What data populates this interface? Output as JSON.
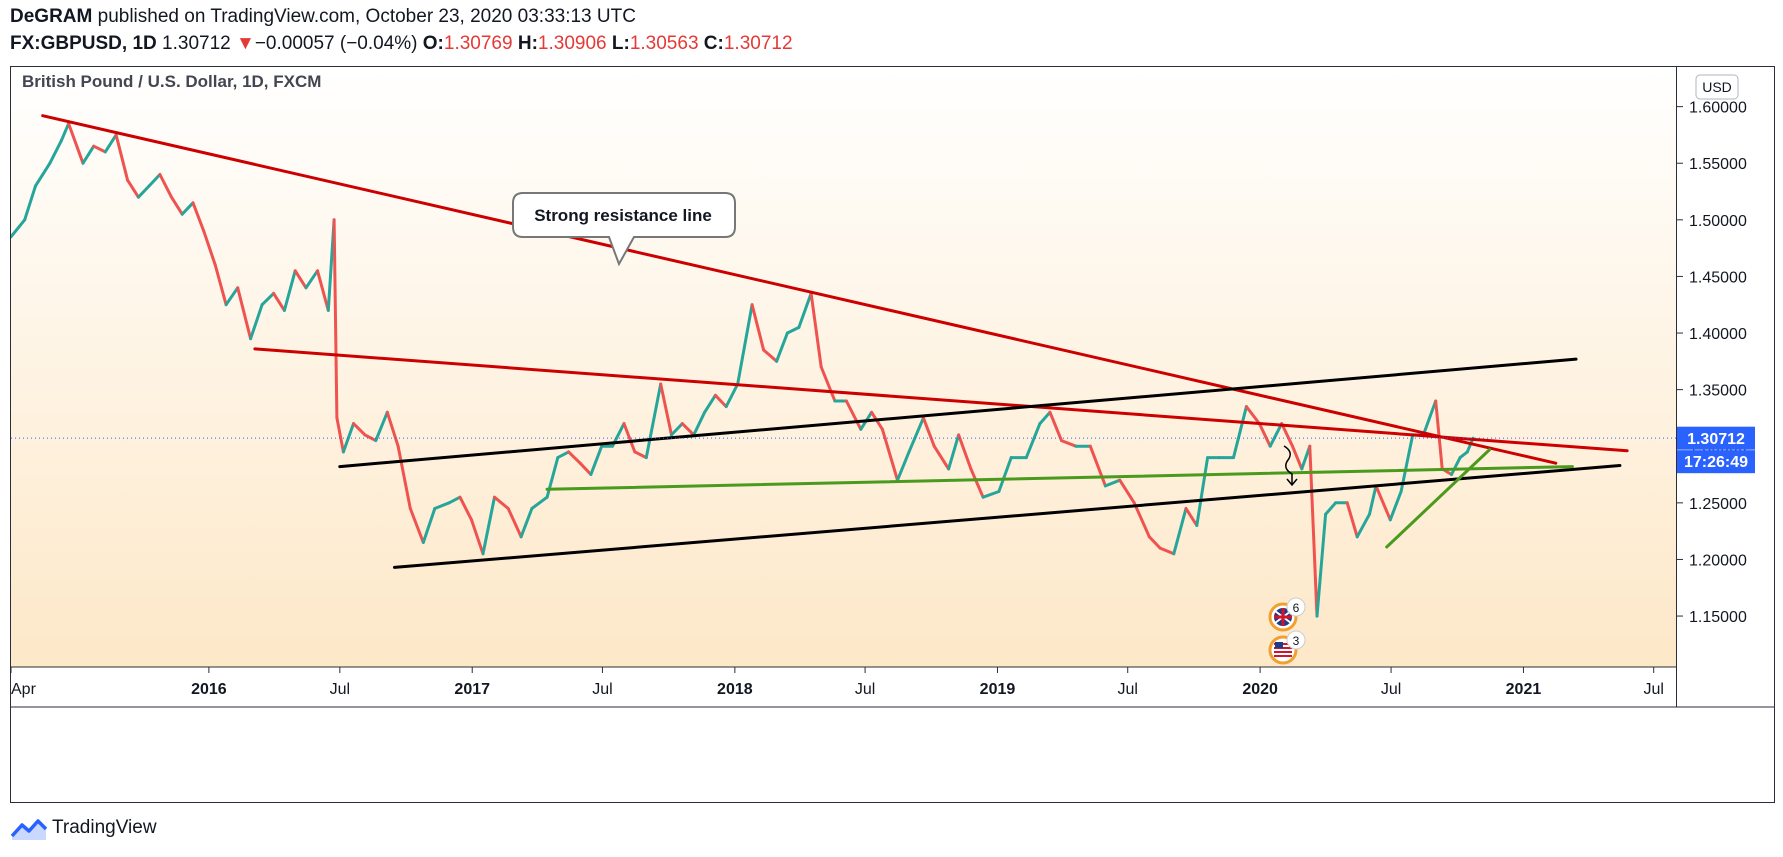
{
  "header": {
    "author": "DeGRAM",
    "published": "published on TradingView.com, October 23, 2020 03:33:13 UTC",
    "symbol": "FX:GBPUSD, 1D",
    "last": "1.30712",
    "change_arrow": "▼",
    "change": "−0.00057 (−0.04%)",
    "o_label": "O:",
    "o_value": "1.30769",
    "h_label": "H:",
    "h_value": "1.30906",
    "l_label": "L:",
    "l_value": "1.30563",
    "c_label": "C:",
    "c_value": "1.30712"
  },
  "chart_title": "British Pound / U.S. Dollar, 1D, FXCM",
  "currency_badge": "USD",
  "price_badge": "1.30712",
  "countdown_badge": "17:26:49",
  "annotation": "Strong resistance line",
  "event_icons": [
    {
      "flag": "uk-flag-icon",
      "count": "6"
    },
    {
      "flag": "us-flag-icon",
      "count": "3"
    }
  ],
  "footer_brand": "TradingView",
  "colors": {
    "resistance": "#cc0000",
    "channel": "#000000",
    "support_green": "#4a9a1e",
    "candle_up": "#26a69a",
    "candle_down": "#ef5350",
    "badge_blue": "#2962ff",
    "bg_top": "#ffffff",
    "bg_bottom": "#fde8c8"
  },
  "chart_data": {
    "type": "line",
    "title": "British Pound / U.S. Dollar, 1D, FXCM",
    "ylabel": "USD",
    "ylim": [
      1.105,
      1.635
    ],
    "xlim": [
      "2015-04-01",
      "2021-08-01"
    ],
    "y_ticks": [
      "1.15000",
      "1.20000",
      "1.25000",
      "1.30000",
      "1.35000",
      "1.40000",
      "1.45000",
      "1.50000",
      "1.55000",
      "1.60000"
    ],
    "x_ticks": [
      {
        "label": "Apr",
        "date": "2015-04-01",
        "bold": false
      },
      {
        "label": "2016",
        "date": "2016-01-01",
        "bold": true
      },
      {
        "label": "Jul",
        "date": "2016-07-01",
        "bold": false
      },
      {
        "label": "2017",
        "date": "2017-01-01",
        "bold": true
      },
      {
        "label": "Jul",
        "date": "2017-07-01",
        "bold": false
      },
      {
        "label": "2018",
        "date": "2018-01-01",
        "bold": true
      },
      {
        "label": "Jul",
        "date": "2018-07-01",
        "bold": false
      },
      {
        "label": "2019",
        "date": "2019-01-01",
        "bold": true
      },
      {
        "label": "Jul",
        "date": "2019-07-01",
        "bold": false
      },
      {
        "label": "2020",
        "date": "2020-01-01",
        "bold": true
      },
      {
        "label": "Jul",
        "date": "2020-07-01",
        "bold": false
      },
      {
        "label": "2021",
        "date": "2021-01-01",
        "bold": true
      },
      {
        "label": "Jul",
        "date": "2021-07-01",
        "bold": false
      }
    ],
    "series": [
      {
        "values": [
          [
            "2015-04-01",
            1.485
          ],
          [
            "2015-04-20",
            1.5
          ],
          [
            "2015-05-05",
            1.53
          ],
          [
            "2015-05-25",
            1.55
          ],
          [
            "2015-06-10",
            1.57
          ],
          [
            "2015-06-20",
            1.585
          ],
          [
            "2015-07-10",
            1.55
          ],
          [
            "2015-07-25",
            1.565
          ],
          [
            "2015-08-10",
            1.56
          ],
          [
            "2015-08-25",
            1.575
          ],
          [
            "2015-09-10",
            1.535
          ],
          [
            "2015-09-25",
            1.52
          ],
          [
            "2015-10-10",
            1.53
          ],
          [
            "2015-10-25",
            1.54
          ],
          [
            "2015-11-10",
            1.52
          ],
          [
            "2015-11-25",
            1.505
          ],
          [
            "2015-12-10",
            1.515
          ],
          [
            "2015-12-25",
            1.49
          ],
          [
            "2016-01-10",
            1.46
          ],
          [
            "2016-01-25",
            1.425
          ],
          [
            "2016-02-10",
            1.44
          ],
          [
            "2016-02-28",
            1.395
          ],
          [
            "2016-03-15",
            1.425
          ],
          [
            "2016-03-31",
            1.435
          ],
          [
            "2016-04-15",
            1.42
          ],
          [
            "2016-04-30",
            1.455
          ],
          [
            "2016-05-15",
            1.44
          ],
          [
            "2016-05-31",
            1.455
          ],
          [
            "2016-06-15",
            1.42
          ],
          [
            "2016-06-23",
            1.5
          ],
          [
            "2016-06-27",
            1.325
          ],
          [
            "2016-07-06",
            1.295
          ],
          [
            "2016-07-20",
            1.32
          ],
          [
            "2016-08-05",
            1.31
          ],
          [
            "2016-08-20",
            1.305
          ],
          [
            "2016-09-05",
            1.33
          ],
          [
            "2016-09-20",
            1.3
          ],
          [
            "2016-10-07",
            1.245
          ],
          [
            "2016-10-25",
            1.215
          ],
          [
            "2016-11-10",
            1.245
          ],
          [
            "2016-11-30",
            1.25
          ],
          [
            "2016-12-15",
            1.255
          ],
          [
            "2016-12-31",
            1.235
          ],
          [
            "2017-01-16",
            1.205
          ],
          [
            "2017-02-01",
            1.255
          ],
          [
            "2017-02-20",
            1.245
          ],
          [
            "2017-03-10",
            1.22
          ],
          [
            "2017-03-25",
            1.245
          ],
          [
            "2017-04-15",
            1.255
          ],
          [
            "2017-04-30",
            1.29
          ],
          [
            "2017-05-15",
            1.295
          ],
          [
            "2017-05-31",
            1.285
          ],
          [
            "2017-06-15",
            1.275
          ],
          [
            "2017-06-30",
            1.3
          ],
          [
            "2017-07-15",
            1.3
          ],
          [
            "2017-07-31",
            1.32
          ],
          [
            "2017-08-15",
            1.295
          ],
          [
            "2017-08-31",
            1.29
          ],
          [
            "2017-09-20",
            1.355
          ],
          [
            "2017-10-05",
            1.31
          ],
          [
            "2017-10-20",
            1.32
          ],
          [
            "2017-11-05",
            1.31
          ],
          [
            "2017-11-20",
            1.33
          ],
          [
            "2017-12-05",
            1.345
          ],
          [
            "2017-12-20",
            1.335
          ],
          [
            "2018-01-05",
            1.355
          ],
          [
            "2018-01-25",
            1.425
          ],
          [
            "2018-02-10",
            1.385
          ],
          [
            "2018-02-28",
            1.375
          ],
          [
            "2018-03-15",
            1.4
          ],
          [
            "2018-03-31",
            1.405
          ],
          [
            "2018-04-17",
            1.435
          ],
          [
            "2018-05-01",
            1.37
          ],
          [
            "2018-05-20",
            1.34
          ],
          [
            "2018-06-05",
            1.34
          ],
          [
            "2018-06-25",
            1.315
          ],
          [
            "2018-07-10",
            1.33
          ],
          [
            "2018-07-25",
            1.315
          ],
          [
            "2018-08-15",
            1.27
          ],
          [
            "2018-08-31",
            1.295
          ],
          [
            "2018-09-20",
            1.325
          ],
          [
            "2018-10-05",
            1.3
          ],
          [
            "2018-10-25",
            1.28
          ],
          [
            "2018-11-08",
            1.31
          ],
          [
            "2018-11-25",
            1.28
          ],
          [
            "2018-12-12",
            1.255
          ],
          [
            "2019-01-03",
            1.26
          ],
          [
            "2019-01-20",
            1.29
          ],
          [
            "2019-02-10",
            1.29
          ],
          [
            "2019-03-01",
            1.32
          ],
          [
            "2019-03-15",
            1.33
          ],
          [
            "2019-03-31",
            1.305
          ],
          [
            "2019-04-20",
            1.3
          ],
          [
            "2019-05-10",
            1.3
          ],
          [
            "2019-05-31",
            1.265
          ],
          [
            "2019-06-20",
            1.27
          ],
          [
            "2019-07-10",
            1.25
          ],
          [
            "2019-07-31",
            1.22
          ],
          [
            "2019-08-15",
            1.21
          ],
          [
            "2019-09-03",
            1.205
          ],
          [
            "2019-09-20",
            1.245
          ],
          [
            "2019-10-05",
            1.23
          ],
          [
            "2019-10-20",
            1.29
          ],
          [
            "2019-11-05",
            1.29
          ],
          [
            "2019-11-25",
            1.29
          ],
          [
            "2019-12-13",
            1.335
          ],
          [
            "2019-12-31",
            1.32
          ],
          [
            "2020-01-15",
            1.3
          ],
          [
            "2020-01-31",
            1.32
          ],
          [
            "2020-02-15",
            1.3
          ],
          [
            "2020-02-28",
            1.28
          ],
          [
            "2020-03-10",
            1.3
          ],
          [
            "2020-03-20",
            1.15
          ],
          [
            "2020-04-01",
            1.24
          ],
          [
            "2020-04-15",
            1.25
          ],
          [
            "2020-05-01",
            1.25
          ],
          [
            "2020-05-15",
            1.22
          ],
          [
            "2020-06-01",
            1.24
          ],
          [
            "2020-06-10",
            1.265
          ],
          [
            "2020-06-30",
            1.235
          ],
          [
            "2020-07-15",
            1.26
          ],
          [
            "2020-07-31",
            1.31
          ],
          [
            "2020-08-15",
            1.31
          ],
          [
            "2020-09-01",
            1.34
          ],
          [
            "2020-09-10",
            1.28
          ],
          [
            "2020-09-23",
            1.275
          ],
          [
            "2020-10-05",
            1.29
          ],
          [
            "2020-10-15",
            1.295
          ],
          [
            "2020-10-23",
            1.30712
          ]
        ]
      }
    ],
    "trendlines": [
      {
        "kind": "resistance-major",
        "color": "red",
        "from": [
          "2015-05-15",
          1.592
        ],
        "to": [
          "2021-02-15",
          1.285
        ]
      },
      {
        "kind": "resistance-minor",
        "color": "red",
        "from": [
          "2016-03-05",
          1.386
        ],
        "to": [
          "2021-05-25",
          1.296
        ]
      },
      {
        "kind": "channel-upper",
        "color": "black",
        "from": [
          "2016-07-01",
          1.282
        ],
        "to": [
          "2021-03-15",
          1.377
        ]
      },
      {
        "kind": "channel-lower",
        "color": "black",
        "from": [
          "2016-09-15",
          1.193
        ],
        "to": [
          "2021-05-15",
          1.283
        ]
      },
      {
        "kind": "support",
        "color": "green",
        "from": [
          "2017-04-15",
          1.262
        ],
        "to": [
          "2021-03-10",
          1.282
        ]
      },
      {
        "kind": "rising-support",
        "color": "green",
        "from": [
          "2020-06-25",
          1.211
        ],
        "to": [
          "2020-11-15",
          1.297
        ]
      }
    ],
    "last_price": 1.30712
  }
}
